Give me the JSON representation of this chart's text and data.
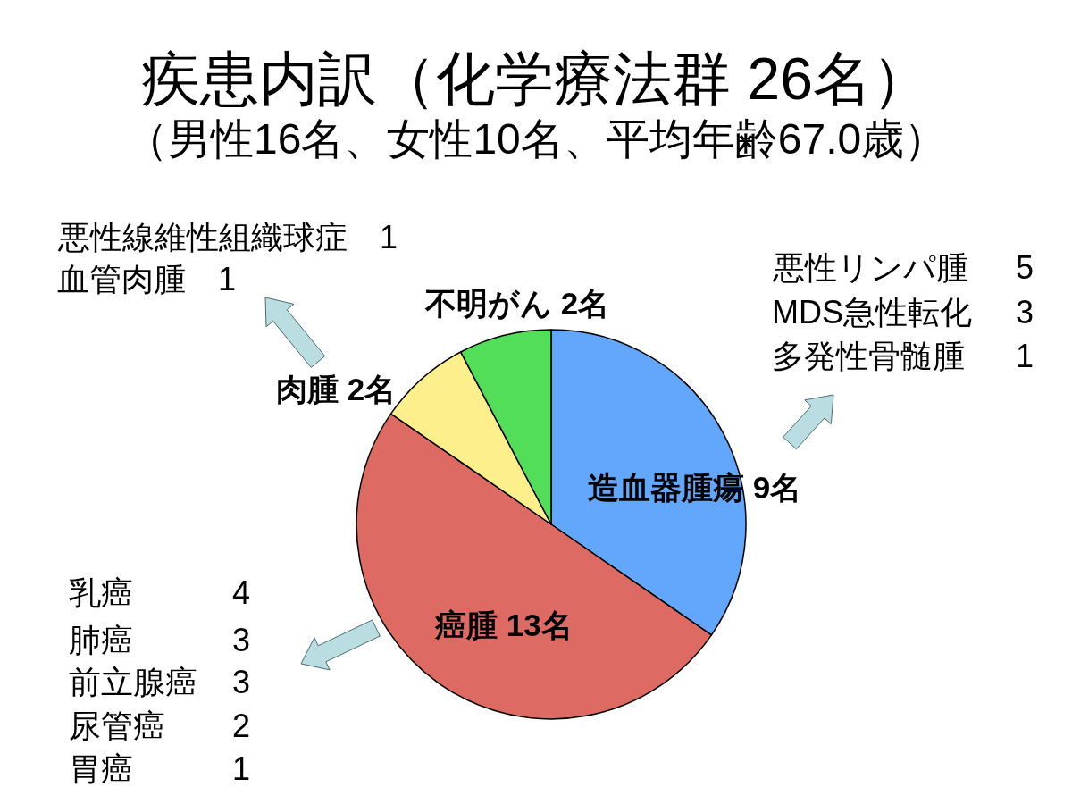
{
  "chart_data": {
    "type": "pie",
    "title": "疾患内訳（化学療法群 26名）",
    "subtitle": "（男性16名、女性10名、平均年齢67.0歳）",
    "categories": [
      "造血器腫瘍",
      "癌腫",
      "肉腫",
      "不明がん"
    ],
    "values": [
      9,
      13,
      2,
      2
    ],
    "value_labels": [
      "9名",
      "13名",
      "2名",
      "2名"
    ],
    "colors": [
      "#63a7fd",
      "#dd6b63",
      "#fdf08c",
      "#52de59"
    ],
    "annotations": [
      "悪性線維性組織球症 1",
      "血管肉腫 1",
      "悪性リンパ腫 5",
      "MDS急性転化 3",
      "多発性骨髄腫 1",
      "乳癌 4",
      "肺癌 3",
      "前立腺癌 3",
      "尿管癌 2",
      "胃癌 1"
    ]
  }
}
